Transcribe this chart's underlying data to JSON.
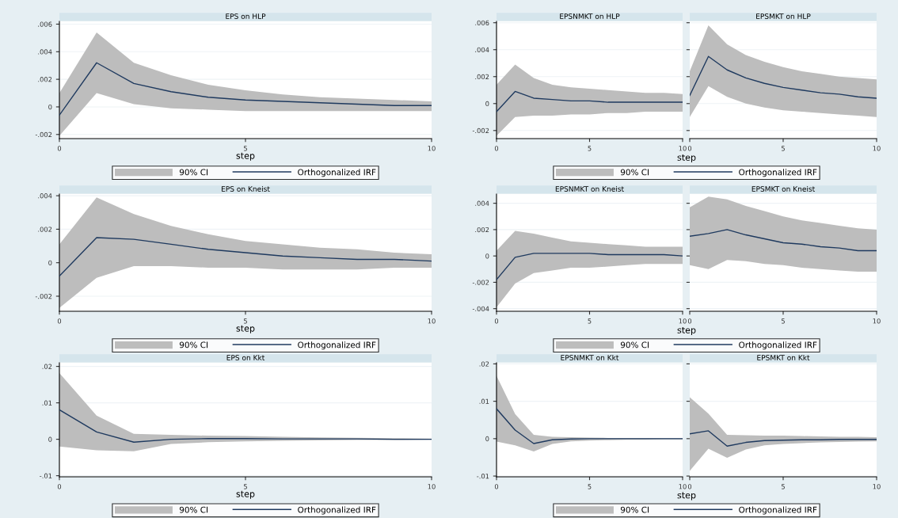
{
  "chart_data": [
    {
      "type": "line",
      "title": "EPS on HLP",
      "xlabel": "step",
      "x": [
        0,
        1,
        2,
        3,
        4,
        5,
        6,
        7,
        8,
        9,
        10
      ],
      "xlim": [
        0,
        10
      ],
      "xticks": [
        0,
        5,
        10
      ],
      "ylim": [
        -0.0023,
        0.0062
      ],
      "yticks": [
        {
          "value": -0.002,
          "label": "-.002"
        },
        {
          "value": 0,
          "label": "0"
        },
        {
          "value": 0.002,
          "label": ".002"
        },
        {
          "value": 0.004,
          "label": ".004"
        },
        {
          "value": 0.006,
          "label": ".006"
        }
      ],
      "grid": "y",
      "legend": "bottom",
      "annotations": [
        "90% CI"
      ],
      "series": [
        {
          "name": "Orthogonalized IRF",
          "color": "#1f3a5f",
          "values": [
            -0.0006,
            0.0032,
            0.0017,
            0.0011,
            0.0007,
            0.0005,
            0.0004,
            0.0003,
            0.0002,
            0.0001,
            0.0001
          ],
          "lower": [
            -0.0021,
            0.001,
            0.0002,
            -0.0001,
            -0.0002,
            -0.0003,
            -0.0003,
            -0.0003,
            -0.0003,
            -0.0003,
            -0.0003
          ],
          "upper": [
            0.001,
            0.0054,
            0.0032,
            0.0023,
            0.0016,
            0.0012,
            0.0009,
            0.0007,
            0.0006,
            0.0005,
            0.0004
          ]
        }
      ]
    },
    {
      "type": "line",
      "title": "EPSNMKT on HLP",
      "xlabel": "step",
      "x": [
        0,
        1,
        2,
        3,
        4,
        5,
        6,
        7,
        8,
        9,
        10
      ],
      "xlim": [
        0,
        10
      ],
      "xticks": [
        0,
        5,
        10
      ],
      "ylim": [
        -0.0026,
        0.0061
      ],
      "yticks": [
        {
          "value": -0.002,
          "label": "-.002"
        },
        {
          "value": 0,
          "label": "0"
        },
        {
          "value": 0.002,
          "label": ".002"
        },
        {
          "value": 0.004,
          "label": ".004"
        },
        {
          "value": 0.006,
          "label": ".006"
        }
      ],
      "grid": "y",
      "legend": "bottom",
      "annotations": [
        "90% CI"
      ],
      "series": [
        {
          "name": "Orthogonalized IRF",
          "color": "#1f3a5f",
          "values": [
            -0.0006,
            0.0009,
            0.0004,
            0.0003,
            0.0002,
            0.0002,
            0.0001,
            0.0001,
            0.0001,
            0.0001,
            0.0001
          ],
          "lower": [
            -0.0024,
            -0.001,
            -0.0009,
            -0.0009,
            -0.0008,
            -0.0008,
            -0.0007,
            -0.0007,
            -0.0006,
            -0.0006,
            -0.0006
          ],
          "upper": [
            0.0014,
            0.0029,
            0.0019,
            0.0014,
            0.0012,
            0.0011,
            0.001,
            0.0009,
            0.0008,
            0.0008,
            0.0007
          ]
        }
      ]
    },
    {
      "type": "line",
      "title": "EPSMKT on HLP",
      "x": [
        0,
        1,
        2,
        3,
        4,
        5,
        6,
        7,
        8,
        9,
        10
      ],
      "xlim": [
        0,
        10
      ],
      "xticks": [
        0,
        5,
        10
      ],
      "ylim": [
        -0.0026,
        0.0061
      ],
      "grid": "y",
      "tick_labels": "x",
      "series": [
        {
          "color": "#1f3a5f",
          "values": [
            0.0006,
            0.0035,
            0.0025,
            0.0019,
            0.0015,
            0.0012,
            0.001,
            0.0008,
            0.0007,
            0.0005,
            0.0004
          ],
          "lower": [
            -0.001,
            0.0013,
            0.0005,
            0.0,
            -0.0003,
            -0.0005,
            -0.0006,
            -0.0007,
            -0.0008,
            -0.0009,
            -0.001
          ],
          "upper": [
            0.0024,
            0.0058,
            0.0044,
            0.0036,
            0.0031,
            0.0027,
            0.0024,
            0.0022,
            0.002,
            0.0019,
            0.0018
          ]
        }
      ]
    },
    {
      "type": "line",
      "title": "EPS on Kneist",
      "xlabel": "step",
      "x": [
        0,
        1,
        2,
        3,
        4,
        5,
        6,
        7,
        8,
        9,
        10
      ],
      "xlim": [
        0,
        10
      ],
      "xticks": [
        0,
        5,
        10
      ],
      "ylim": [
        -0.0029,
        0.0041
      ],
      "yticks": [
        {
          "value": -0.002,
          "label": "-.002"
        },
        {
          "value": 0,
          "label": "0"
        },
        {
          "value": 0.002,
          "label": ".002"
        },
        {
          "value": 0.004,
          "label": ".004"
        }
      ],
      "grid": "y",
      "legend": "bottom",
      "annotations": [
        "90% CI"
      ],
      "series": [
        {
          "name": "Orthogonalized IRF",
          "color": "#1f3a5f",
          "values": [
            -0.0008,
            0.0015,
            0.0014,
            0.0011,
            0.0008,
            0.0006,
            0.0004,
            0.0003,
            0.0002,
            0.0002,
            0.0001
          ],
          "lower": [
            -0.0027,
            -0.0009,
            -0.0002,
            -0.0002,
            -0.0003,
            -0.0003,
            -0.0004,
            -0.0004,
            -0.0004,
            -0.0003,
            -0.0003
          ],
          "upper": [
            0.0011,
            0.0039,
            0.0029,
            0.0022,
            0.0017,
            0.0013,
            0.0011,
            0.0009,
            0.0008,
            0.0006,
            0.0005
          ]
        }
      ]
    },
    {
      "type": "line",
      "title": "EPSNMKT on Kneist",
      "xlabel": "step",
      "x": [
        0,
        1,
        2,
        3,
        4,
        5,
        6,
        7,
        8,
        9,
        10
      ],
      "xlim": [
        0,
        10
      ],
      "xticks": [
        0,
        5,
        10
      ],
      "ylim": [
        -0.0042,
        0.0047
      ],
      "yticks": [
        {
          "value": -0.004,
          "label": "-.004"
        },
        {
          "value": -0.002,
          "label": "-.002"
        },
        {
          "value": 0,
          "label": "0"
        },
        {
          "value": 0.002,
          "label": ".002"
        },
        {
          "value": 0.004,
          "label": ".004"
        }
      ],
      "grid": "y",
      "legend": "bottom",
      "annotations": [
        "90% CI"
      ],
      "series": [
        {
          "name": "Orthogonalized IRF",
          "color": "#1f3a5f",
          "values": [
            -0.0018,
            -0.0001,
            0.0002,
            0.0002,
            0.0002,
            0.0002,
            0.0001,
            0.0001,
            0.0001,
            0.0001,
            0.0
          ],
          "lower": [
            -0.0039,
            -0.0021,
            -0.0013,
            -0.0011,
            -0.0009,
            -0.0009,
            -0.0008,
            -0.0007,
            -0.0006,
            -0.0006,
            -0.0006
          ],
          "upper": [
            0.0004,
            0.0019,
            0.0017,
            0.0014,
            0.0011,
            0.001,
            0.0009,
            0.0008,
            0.0007,
            0.0007,
            0.0007
          ]
        }
      ]
    },
    {
      "type": "line",
      "title": "EPSMKT on Kneist",
      "x": [
        0,
        1,
        2,
        3,
        4,
        5,
        6,
        7,
        8,
        9,
        10
      ],
      "xlim": [
        0,
        10
      ],
      "xticks": [
        0,
        5,
        10
      ],
      "ylim": [
        -0.0042,
        0.0047
      ],
      "grid": "y",
      "tick_labels": "x",
      "series": [
        {
          "color": "#1f3a5f",
          "values": [
            0.0015,
            0.0017,
            0.002,
            0.0016,
            0.0013,
            0.001,
            0.0009,
            0.0007,
            0.0006,
            0.0004,
            0.0004
          ],
          "lower": [
            -0.0007,
            -0.001,
            -0.0003,
            -0.0004,
            -0.0006,
            -0.0007,
            -0.0009,
            -0.001,
            -0.0011,
            -0.0012,
            -0.0012
          ],
          "upper": [
            0.0037,
            0.0045,
            0.0043,
            0.0038,
            0.0034,
            0.003,
            0.0027,
            0.0025,
            0.0023,
            0.0021,
            0.002
          ]
        }
      ]
    },
    {
      "type": "line",
      "title": "EPS on Kkt",
      "xlabel": "step",
      "x": [
        0,
        1,
        2,
        3,
        4,
        5,
        6,
        7,
        8,
        9,
        10
      ],
      "xlim": [
        0,
        10
      ],
      "xticks": [
        0,
        5,
        10
      ],
      "ylim": [
        -0.0103,
        0.021
      ],
      "yticks": [
        {
          "value": -0.01,
          "label": "-.01"
        },
        {
          "value": 0,
          "label": "0"
        },
        {
          "value": 0.01,
          "label": ".01"
        },
        {
          "value": 0.02,
          "label": ".02"
        }
      ],
      "grid": "y",
      "legend": "bottom",
      "annotations": [
        "90% CI"
      ],
      "series": [
        {
          "name": "Orthogonalized IRF",
          "color": "#1f3a5f",
          "values": [
            0.0081,
            0.002,
            -0.0008,
            0.0,
            0.0002,
            0.0002,
            0.0001,
            0.0001,
            0.0001,
            0.0,
            0.0
          ],
          "lower": [
            -0.002,
            -0.003,
            -0.0033,
            -0.0013,
            -0.0008,
            -0.0006,
            -0.0004,
            -0.0003,
            -0.0002,
            -0.0002,
            -0.0001
          ],
          "upper": [
            0.0182,
            0.0065,
            0.0015,
            0.0012,
            0.001,
            0.0009,
            0.0007,
            0.0005,
            0.0004,
            0.0003,
            0.0002
          ]
        }
      ]
    },
    {
      "type": "line",
      "title": "EPSNMKT on Kkt",
      "xlabel": "step",
      "x": [
        0,
        1,
        2,
        3,
        4,
        5,
        6,
        7,
        8,
        9,
        10
      ],
      "xlim": [
        0,
        10
      ],
      "xticks": [
        0,
        5,
        10
      ],
      "ylim": [
        -0.0102,
        0.0203
      ],
      "yticks": [
        {
          "value": -0.01,
          "label": "-.01"
        },
        {
          "value": 0,
          "label": "0"
        },
        {
          "value": 0.01,
          "label": ".01"
        },
        {
          "value": 0.02,
          "label": ".02"
        }
      ],
      "grid": "y",
      "legend": "bottom",
      "annotations": [
        "90% CI"
      ],
      "series": [
        {
          "name": "Orthogonalized IRF",
          "color": "#1f3a5f",
          "values": [
            0.008,
            0.0023,
            -0.0013,
            -0.0003,
            -0.0001,
            0.0,
            0.0,
            0.0,
            0.0,
            0.0,
            0.0
          ],
          "lower": [
            -0.0008,
            -0.0018,
            -0.0034,
            -0.0014,
            -0.0007,
            -0.0005,
            -0.0004,
            -0.0003,
            -0.0003,
            -0.0002,
            -0.0002
          ],
          "upper": [
            0.0168,
            0.0066,
            0.001,
            0.0005,
            0.0004,
            0.0003,
            0.0002,
            0.0002,
            0.0002,
            0.0001,
            0.0001
          ]
        }
      ]
    },
    {
      "type": "line",
      "title": "EPSMKT on Kkt",
      "x": [
        0,
        1,
        2,
        3,
        4,
        5,
        6,
        7,
        8,
        9,
        10
      ],
      "xlim": [
        0,
        10
      ],
      "xticks": [
        0,
        5,
        10
      ],
      "ylim": [
        -0.0102,
        0.0203
      ],
      "grid": "y",
      "tick_labels": "x",
      "series": [
        {
          "color": "#1f3a5f",
          "values": [
            0.0013,
            0.0021,
            -0.002,
            -0.001,
            -0.0005,
            -0.0004,
            -0.0003,
            -0.0003,
            -0.0002,
            -0.0002,
            -0.0002
          ],
          "lower": [
            -0.0086,
            -0.0027,
            -0.0051,
            -0.0029,
            -0.0018,
            -0.0014,
            -0.0012,
            -0.001,
            -0.0009,
            -0.0008,
            -0.0007
          ],
          "upper": [
            0.0111,
            0.0067,
            0.001,
            0.0009,
            0.0008,
            0.0008,
            0.0007,
            0.0006,
            0.0005,
            0.0005,
            0.0004
          ]
        }
      ]
    }
  ]
}
